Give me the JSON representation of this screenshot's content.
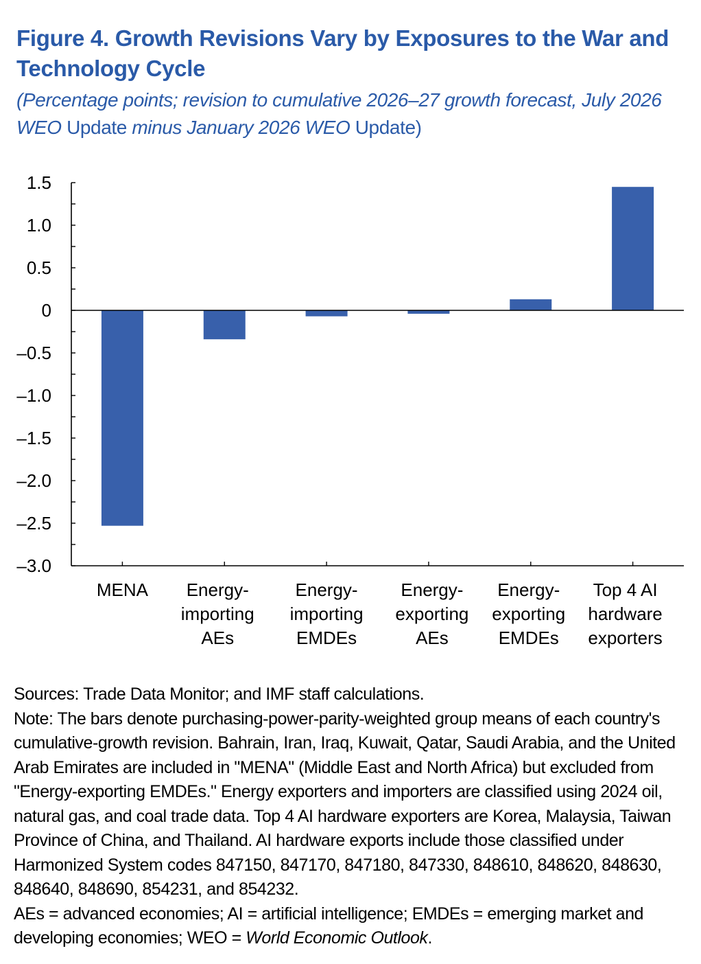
{
  "figure": {
    "title": "Figure 4.  Growth Revisions Vary by Exposures to the War and Technology Cycle",
    "subtitle": {
      "part1": "(Percentage points; revision to cumulative 2026–27 growth forecast, July 2026 WEO",
      "part2": " Update ",
      "part3": "minus January 2026 WEO",
      "part4": " Update)"
    }
  },
  "chart_data": {
    "type": "bar",
    "categories": [
      [
        "MENA"
      ],
      [
        "Energy-",
        "importing",
        "AEs"
      ],
      [
        "Energy-",
        "importing",
        "EMDEs"
      ],
      [
        "Energy-",
        "exporting",
        "AEs"
      ],
      [
        "Energy-",
        "exporting",
        "EMDEs"
      ],
      [
        "Top 4 AI",
        "hardware",
        "exporters"
      ]
    ],
    "values": [
      -2.53,
      -0.34,
      -0.07,
      -0.04,
      0.13,
      1.45
    ],
    "ylim": [
      -3.0,
      1.5
    ],
    "ytick_values": [
      1.5,
      1.0,
      0.5,
      0,
      -0.5,
      -1.0,
      -1.5,
      -2.0,
      -2.5,
      -3.0
    ],
    "ytick_labels": [
      "1.5",
      "1.0",
      "0.5",
      "0",
      "–0.5",
      "–1.0",
      "–1.5",
      "–2.0",
      "–2.5",
      "–3.0"
    ],
    "bar_color": "#3860ab",
    "grid": false,
    "legend": "none"
  },
  "notes": {
    "sources": "Sources: Trade Data Monitor; and IMF staff calculations.",
    "note": "Note: The bars denote purchasing-power-parity-weighted group means of each country's cumulative-growth revision. Bahrain, Iran, Iraq, Kuwait, Qatar, Saudi Arabia, and the United Arab Emirates are included in \"MENA\" (Middle East and North Africa) but excluded from \"Energy-exporting EMDEs.\" Energy exporters and importers are classified using 2024 oil, natural gas, and coal trade data. Top 4 AI hardware exporters are Korea, Malaysia, Taiwan Province of China, and Thailand. AI hardware exports include those classified under Harmonized System codes 847150, 847170, 847180, 847330, 848610, 848620, 848630, 848640, 848690, 854231, and 854232.",
    "abbrev": "AEs = advanced economies; AI = artificial intelligence; EMDEs = emerging market and developing economies; WEO = ",
    "abbrev_italic": "World Economic Outlook",
    "abbrev_end": "."
  }
}
